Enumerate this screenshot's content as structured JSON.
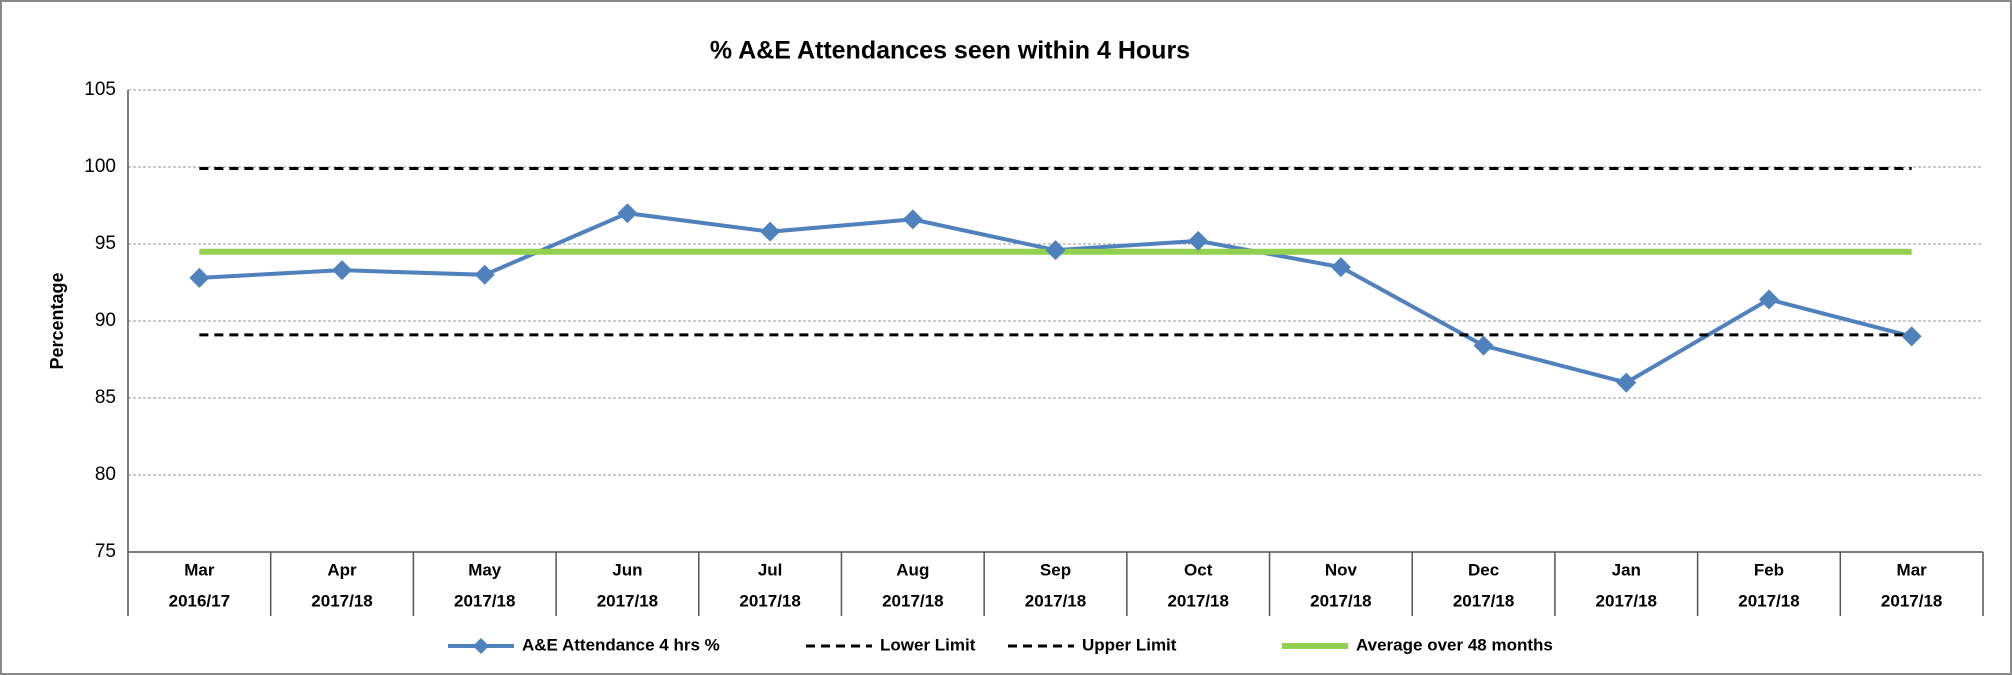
{
  "chart_data": {
    "type": "line",
    "title": "% A&E Attendances seen within 4 Hours",
    "y_label": "Percentage",
    "categories": [
      [
        "Mar",
        "2016/17"
      ],
      [
        "Apr",
        "2017/18"
      ],
      [
        "May",
        "2017/18"
      ],
      [
        "Jun",
        "2017/18"
      ],
      [
        "Jul",
        "2017/18"
      ],
      [
        "Aug",
        "2017/18"
      ],
      [
        "Sep",
        "2017/18"
      ],
      [
        "Oct",
        "2017/18"
      ],
      [
        "Nov",
        "2017/18"
      ],
      [
        "Dec",
        "2017/18"
      ],
      [
        "Jan",
        "2017/18"
      ],
      [
        "Feb",
        "2017/18"
      ],
      [
        "Mar",
        "2017/18"
      ]
    ],
    "series": [
      {
        "name": "A&E Attendance 4 hrs %",
        "color": "#4f81bd",
        "style": "solid",
        "marker": "diamond",
        "width": 4,
        "values": [
          92.8,
          93.3,
          93.0,
          97.0,
          95.8,
          96.6,
          94.6,
          95.2,
          93.5,
          88.4,
          86.0,
          91.4,
          89.0
        ]
      },
      {
        "name": "Lower Limit",
        "color": "#000000",
        "style": "dashed",
        "marker": "none",
        "width": 3,
        "values": [
          89.1,
          89.1,
          89.1,
          89.1,
          89.1,
          89.1,
          89.1,
          89.1,
          89.1,
          89.1,
          89.1,
          89.1,
          89.1
        ]
      },
      {
        "name": "Upper Limit",
        "color": "#000000",
        "style": "dashed",
        "marker": "none",
        "width": 3,
        "values": [
          99.9,
          99.9,
          99.9,
          99.9,
          99.9,
          99.9,
          99.9,
          99.9,
          99.9,
          99.9,
          99.9,
          99.9,
          99.9
        ]
      },
      {
        "name": "Average over 48 months",
        "color": "#92d050",
        "style": "solid",
        "marker": "none",
        "width": 6,
        "values": [
          94.5,
          94.5,
          94.5,
          94.5,
          94.5,
          94.5,
          94.5,
          94.5,
          94.5,
          94.5,
          94.5,
          94.5,
          94.5
        ]
      }
    ],
    "ylim": [
      75,
      105
    ],
    "yticks": [
      75,
      80,
      85,
      90,
      95,
      100,
      105
    ],
    "grid": true,
    "legend": "bottom"
  }
}
